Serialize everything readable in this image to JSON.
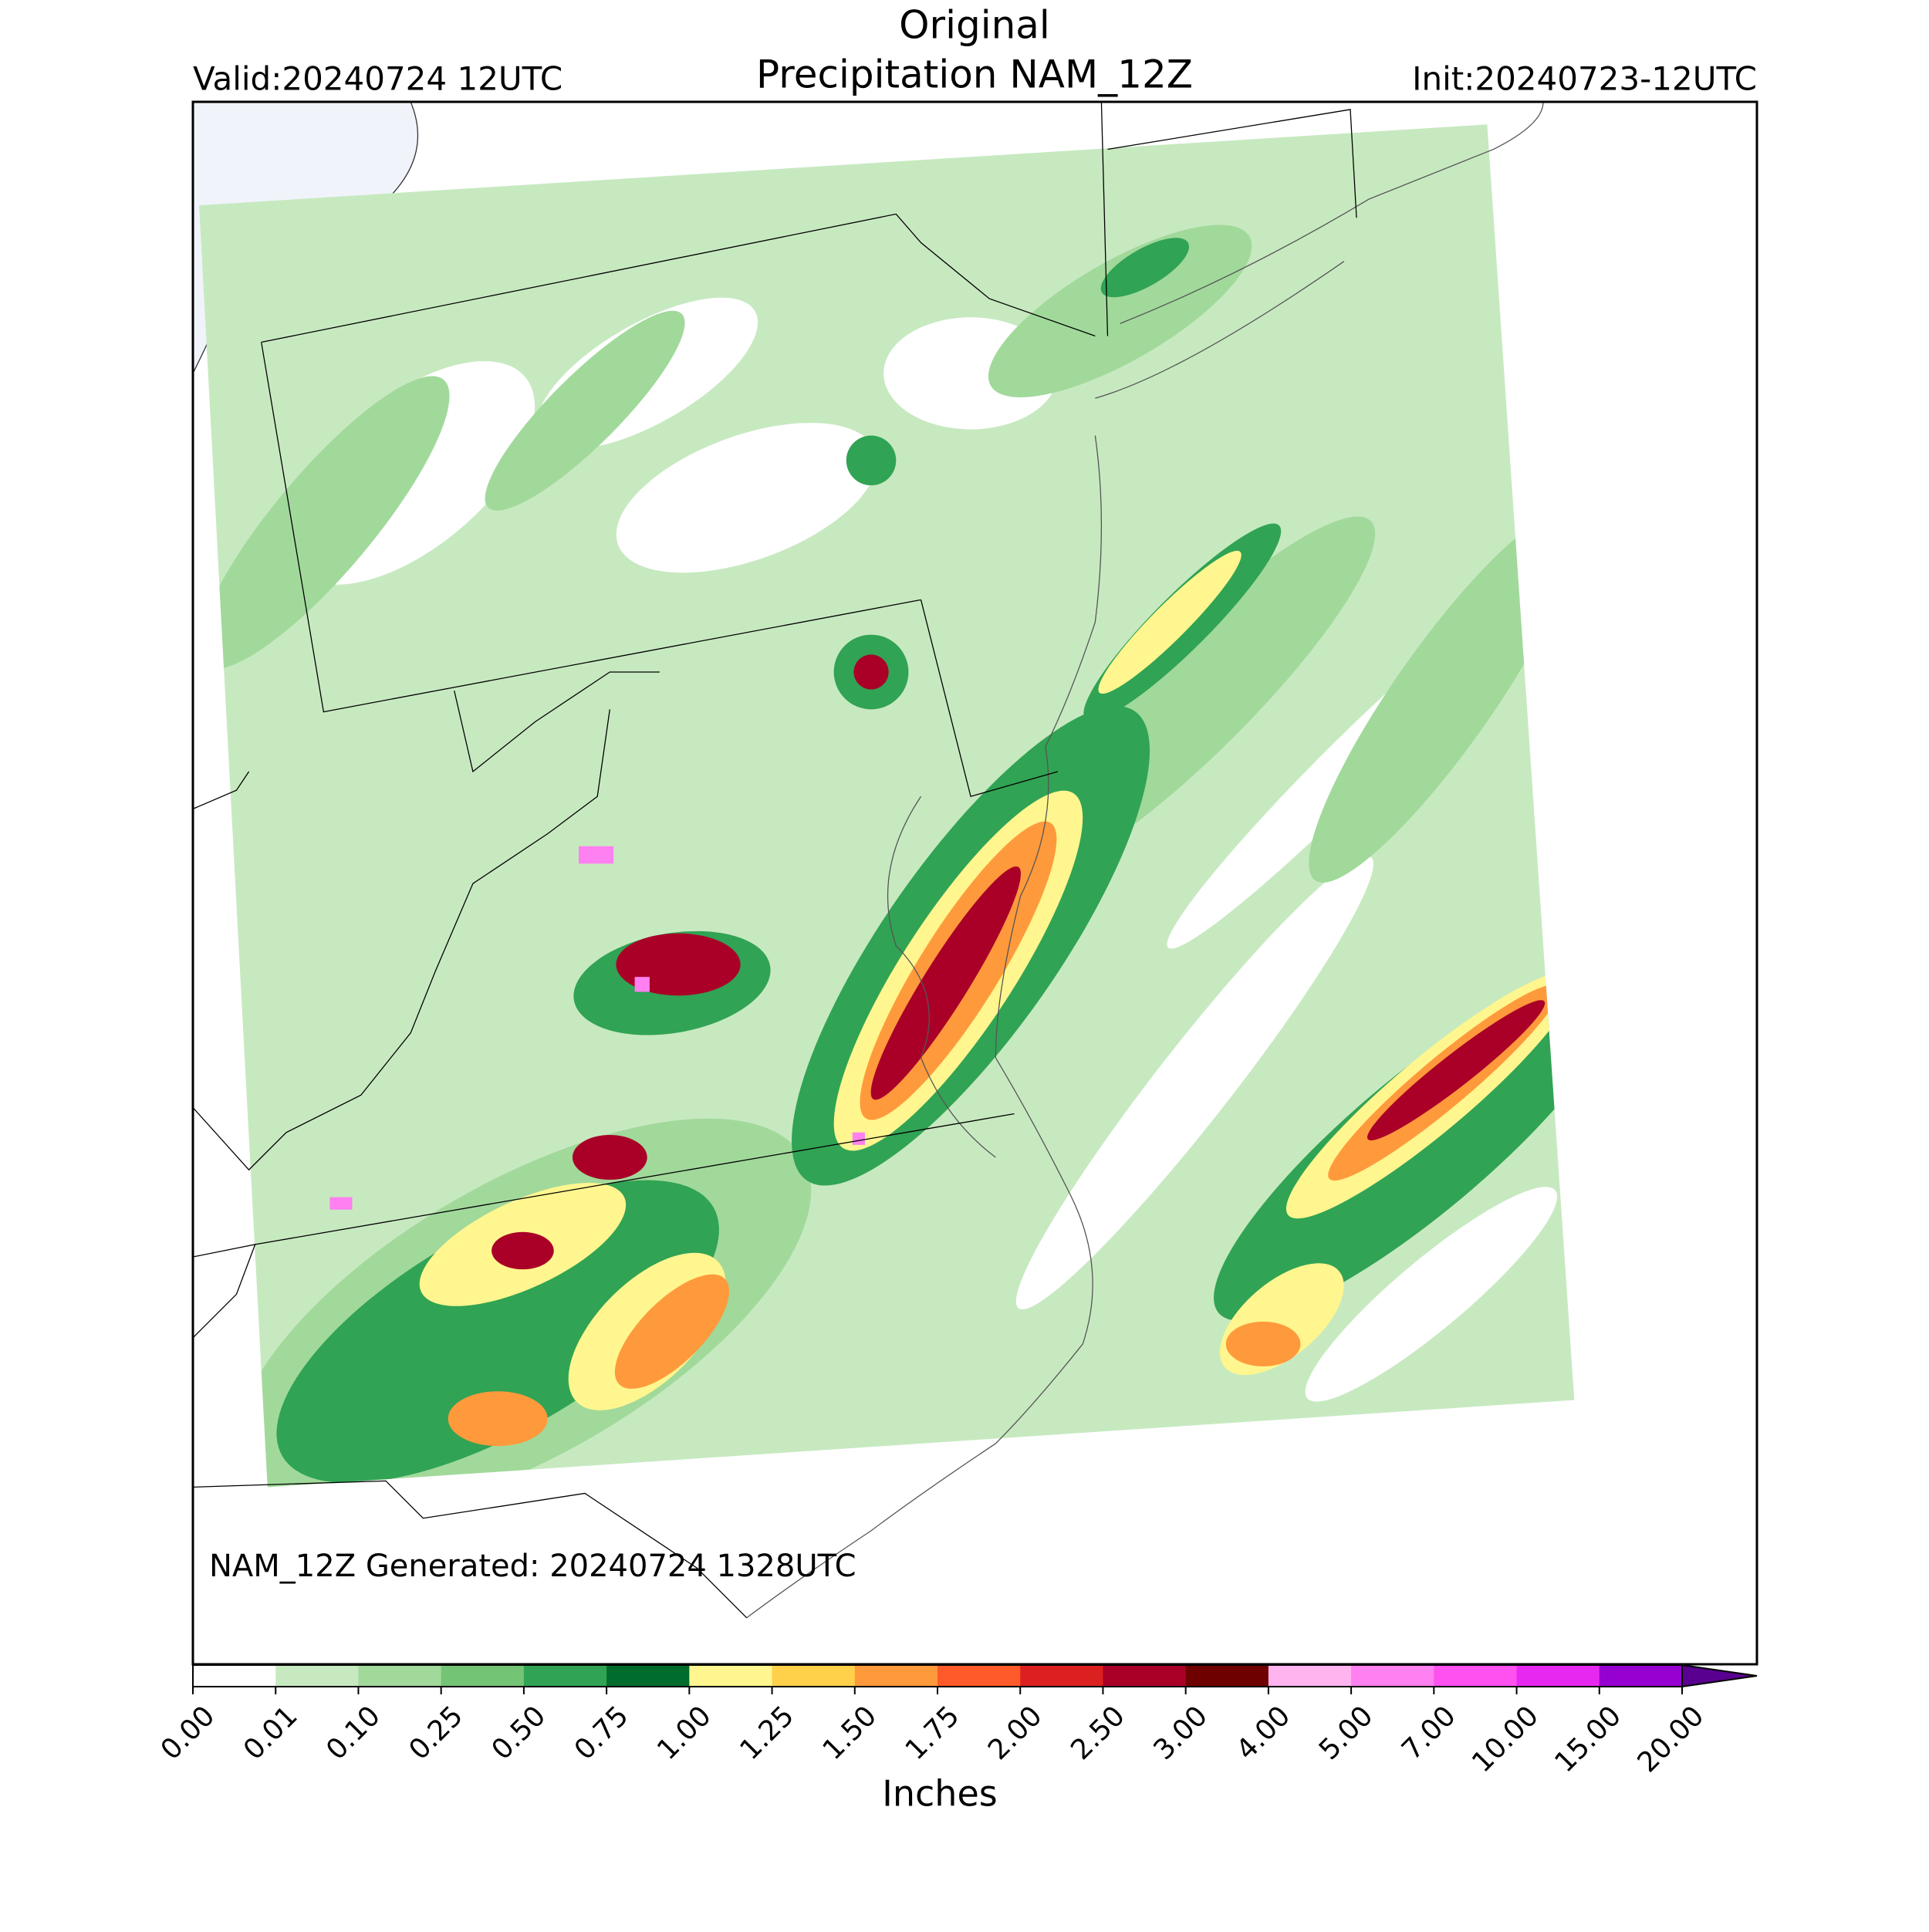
{
  "header": {
    "title": "Original",
    "subtitle": "Precipitation NAM_12Z",
    "valid": "Valid:20240724 12UTC",
    "init": "Init:20240723-12UTC"
  },
  "annotation": "NAM_12Z Generated: 20240724 1328UTC",
  "chart_data": {
    "type": "colorbar",
    "label": "Inches",
    "ticks": [
      {
        "value": 0,
        "label": "0.00"
      },
      {
        "value": 0.01,
        "label": "0.01"
      },
      {
        "value": 0.1,
        "label": "0.10"
      },
      {
        "value": 0.25,
        "label": "0.25"
      },
      {
        "value": 0.5,
        "label": "0.50"
      },
      {
        "value": 0.75,
        "label": "0.75"
      },
      {
        "value": 1,
        "label": "1.00"
      },
      {
        "value": 1.25,
        "label": "1.25"
      },
      {
        "value": 1.5,
        "label": "1.50"
      },
      {
        "value": 1.75,
        "label": "1.75"
      },
      {
        "value": 2,
        "label": "2.00"
      },
      {
        "value": 2.5,
        "label": "2.50"
      },
      {
        "value": 3,
        "label": "3.00"
      },
      {
        "value": 4,
        "label": "4.00"
      },
      {
        "value": 5,
        "label": "5.00"
      },
      {
        "value": 7,
        "label": "7.00"
      },
      {
        "value": 10,
        "label": "10.00"
      },
      {
        "value": 15,
        "label": "15.00"
      },
      {
        "value": 20,
        "label": "20.00"
      }
    ],
    "colors": [
      "#ffffff",
      "#c7e9c0",
      "#a1d99b",
      "#74c476",
      "#31a354",
      "#006d2c",
      "#fff68f",
      "#ffd04a",
      "#ff9a3c",
      "#ff5a2a",
      "#dc2020",
      "#aa0028",
      "#6e0000",
      "#ffb4f0",
      "#ff80f0",
      "#ff50f0",
      "#e628f0",
      "#9600d0"
    ],
    "extend_color": "#5a0090"
  }
}
